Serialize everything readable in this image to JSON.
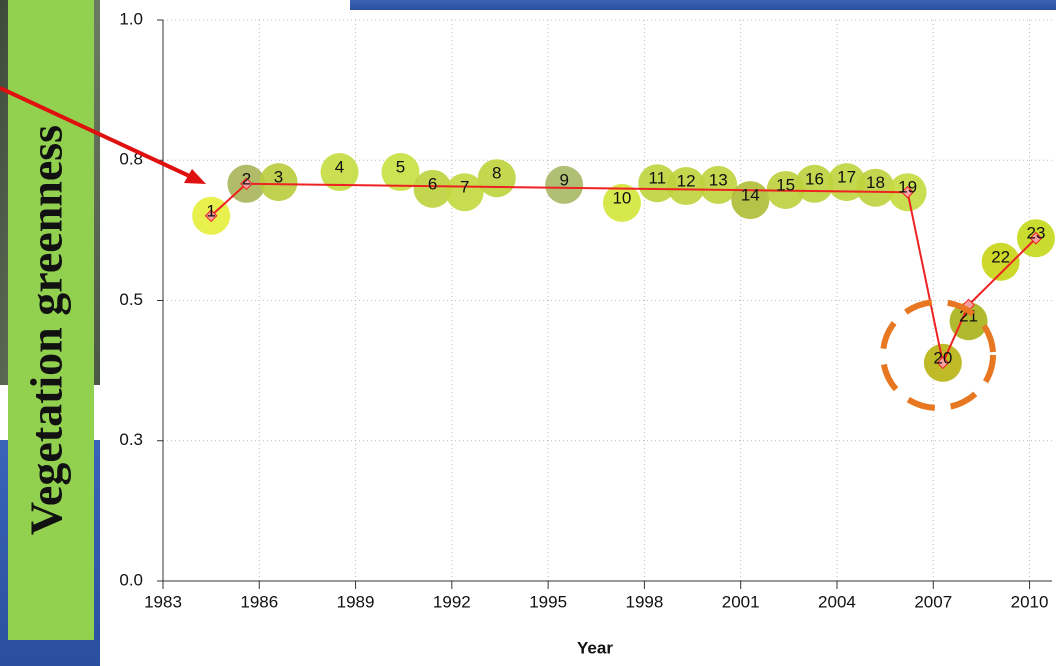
{
  "chart_data": {
    "type": "scatter",
    "ylabel": "Vegetation greenness",
    "xlabel": "Year",
    "xlim": [
      1983,
      2010.7
    ],
    "ylim": [
      0,
      1
    ],
    "xticks": [
      1983,
      1986,
      1989,
      1992,
      1995,
      1998,
      2001,
      2004,
      2007,
      2010
    ],
    "yticks": [
      {
        "value": 0,
        "label": "0.0"
      },
      {
        "value": 0.25,
        "label": "0.3"
      },
      {
        "value": 0.5,
        "label": "0.5"
      },
      {
        "value": 0.75,
        "label": "0.8"
      },
      {
        "value": 1,
        "label": "1.0"
      }
    ],
    "grid": true,
    "points": {
      "x": [
        1984.5,
        1985.6,
        1986.6,
        1988.5,
        1990.4,
        1991.4,
        1992.4,
        1993.4,
        1995.5,
        1997.3,
        1998.4,
        1999.3,
        2000.3,
        2001.3,
        2002.4,
        2003.3,
        2004.3,
        2005.2,
        2006.2,
        2007.3,
        2008.1,
        2009.1,
        2010.2
      ],
      "values": [
        0.651,
        0.708,
        0.711,
        0.729,
        0.729,
        0.699,
        0.693,
        0.718,
        0.706,
        0.674,
        0.709,
        0.704,
        0.706,
        0.679,
        0.697,
        0.708,
        0.711,
        0.701,
        0.693,
        0.389,
        0.463,
        0.569,
        0.611
      ],
      "labels": [
        "1",
        "2",
        "3",
        "4",
        "5",
        "6",
        "7",
        "8",
        "9",
        "10",
        "11",
        "12",
        "13",
        "14",
        "15",
        "16",
        "17",
        "18",
        "19",
        "20",
        "21",
        "22",
        "23"
      ],
      "colors": [
        "#e4ee3a",
        "#a9b55a",
        "#b9cc3c",
        "#c4dc3e",
        "#c7e03f",
        "#bcd23c",
        "#c2d83e",
        "#bed43c",
        "#a9b866",
        "#d3e63a",
        "#bed43c",
        "#bed33c",
        "#bed33c",
        "#aebd34",
        "#bccf3c",
        "#bcd13c",
        "#bed53c",
        "#bed23c",
        "#c4da3e",
        "#b8b210",
        "#a8b218",
        "#c8d414",
        "#c4d81a"
      ]
    },
    "fit": {
      "color": "#ee2222",
      "x": [
        1984.5,
        1985.6,
        2006.2,
        2007.3,
        2008.1,
        2010.2
      ],
      "values": [
        0.651,
        0.708,
        0.693,
        0.389,
        0.492,
        0.611
      ]
    }
  }
}
